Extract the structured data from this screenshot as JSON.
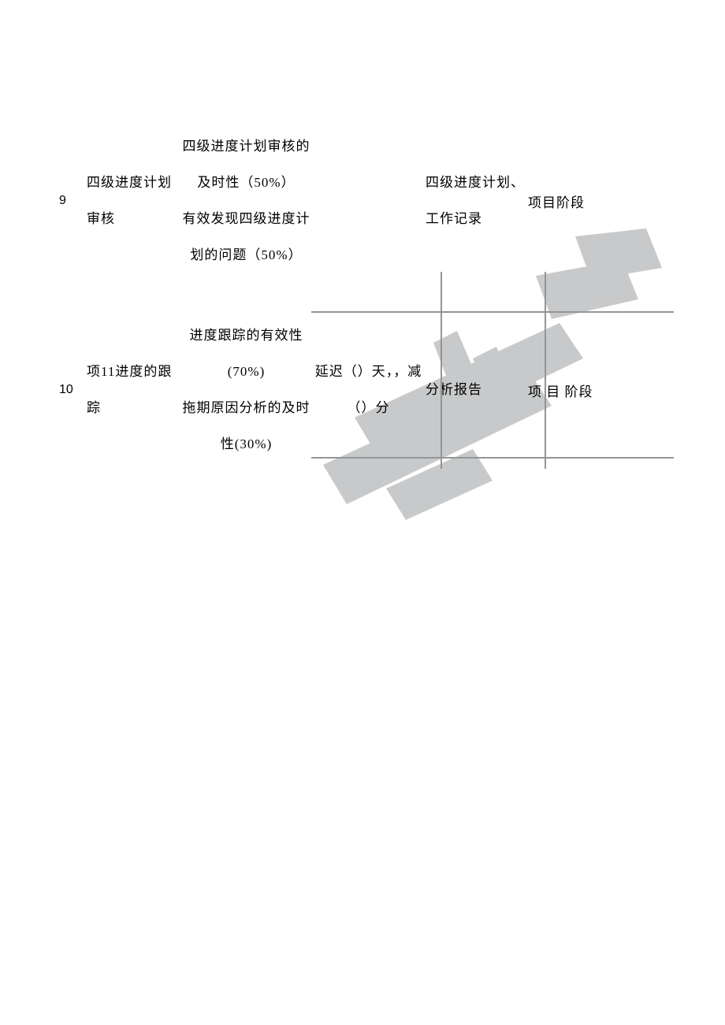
{
  "colors": {
    "bg": "#ffffff",
    "text": "#000000",
    "border": "#939596",
    "watermark": "#bfc0c1"
  },
  "rows": [
    {
      "num": "9",
      "name": "四级进度计划审核",
      "desc": "四级进度计划审核的及时性（50%）\n有效发现四级进度计划的问题（50%）",
      "criteria": "",
      "doc": "四级进度计划、工作记录",
      "stage": "项目阶段"
    },
    {
      "num": "10",
      "name": "项11进度的跟踪",
      "desc": "进度跟踪的有效性(70%)\n拖期原因分析的及时性(30%)",
      "criteria": "延迟（）天，，减（）分",
      "doc": "分析报告",
      "stage": "项 目 阶段"
    }
  ],
  "fonts": {
    "body_size": 17,
    "num_size": 16
  }
}
